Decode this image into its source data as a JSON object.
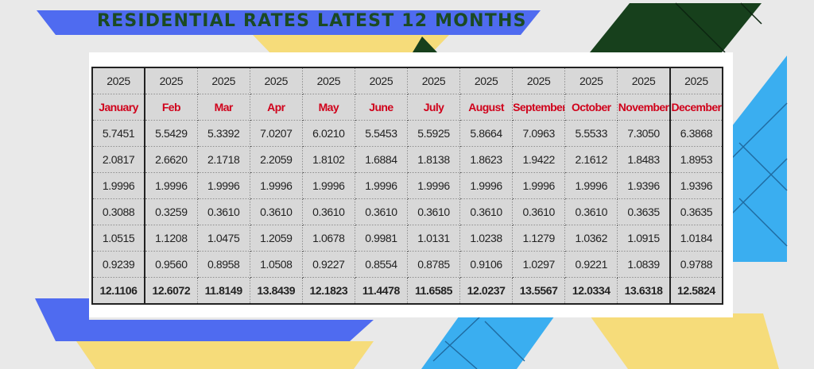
{
  "banner": {
    "title": "RESIDENTIAL RATES  LATEST 12 MONTHS"
  },
  "colors": {
    "background": "#e9e9e9",
    "title": "#1b4a23",
    "month_text": "#d0021b",
    "blue_stripe": "#4f6bf0",
    "yellow_stripe": "#f6dc7a",
    "dark_green": "#17401c",
    "sky_blue": "#3aaef0",
    "cell_fill": "#d8d8d8"
  },
  "table": {
    "years": [
      "2025",
      "2025",
      "2025",
      "2025",
      "2025",
      "2025",
      "2025",
      "2025",
      "2025",
      "2025",
      "2025",
      "2025"
    ],
    "months": [
      "January",
      "Feb",
      "Mar",
      "Apr",
      "May",
      "June",
      "July",
      "August",
      "September",
      "October",
      "November",
      "December"
    ],
    "rows": [
      [
        "5.7451",
        "5.5429",
        "5.3392",
        "7.0207",
        "6.0210",
        "5.5453",
        "5.5925",
        "5.8664",
        "7.0963",
        "5.5533",
        "7.3050",
        "6.3868"
      ],
      [
        "2.0817",
        "2.6620",
        "2.1718",
        "2.2059",
        "1.8102",
        "1.6884",
        "1.8138",
        "1.8623",
        "1.9422",
        "2.1612",
        "1.8483",
        "1.8953"
      ],
      [
        "1.9996",
        "1.9996",
        "1.9996",
        "1.9996",
        "1.9996",
        "1.9996",
        "1.9996",
        "1.9996",
        "1.9996",
        "1.9996",
        "1.9396",
        "1.9396"
      ],
      [
        "0.3088",
        "0.3259",
        "0.3610",
        "0.3610",
        "0.3610",
        "0.3610",
        "0.3610",
        "0.3610",
        "0.3610",
        "0.3610",
        "0.3635",
        "0.3635"
      ],
      [
        "1.0515",
        "1.1208",
        "1.0475",
        "1.2059",
        "1.0678",
        "0.9981",
        "1.0131",
        "1.0238",
        "1.1279",
        "1.0362",
        "1.0915",
        "1.0184"
      ],
      [
        "0.9239",
        "0.9560",
        "0.8958",
        "1.0508",
        "0.9227",
        "0.8554",
        "0.8785",
        "0.9106",
        "1.0297",
        "0.9221",
        "1.0839",
        "0.9788"
      ]
    ],
    "totals": [
      "12.1106",
      "12.6072",
      "11.8149",
      "13.8439",
      "12.1823",
      "11.4478",
      "11.6585",
      "12.0237",
      "13.5567",
      "12.0334",
      "13.6318",
      "12.5824"
    ]
  }
}
